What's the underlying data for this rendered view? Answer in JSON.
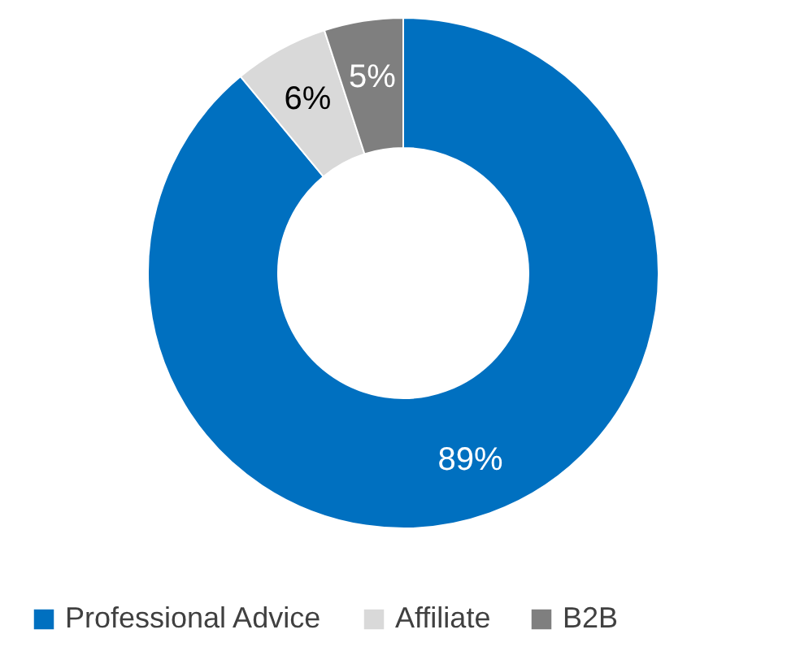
{
  "chart_data": {
    "type": "donut",
    "categories": [
      "Professional Advice",
      "Affiliate",
      "B2B"
    ],
    "values": [
      89,
      6,
      5
    ],
    "colors": [
      "#0070c0",
      "#d9d9d9",
      "#7f7f7f"
    ],
    "value_labels": [
      "89%",
      "6%",
      "5%"
    ],
    "legend": "bottom"
  }
}
